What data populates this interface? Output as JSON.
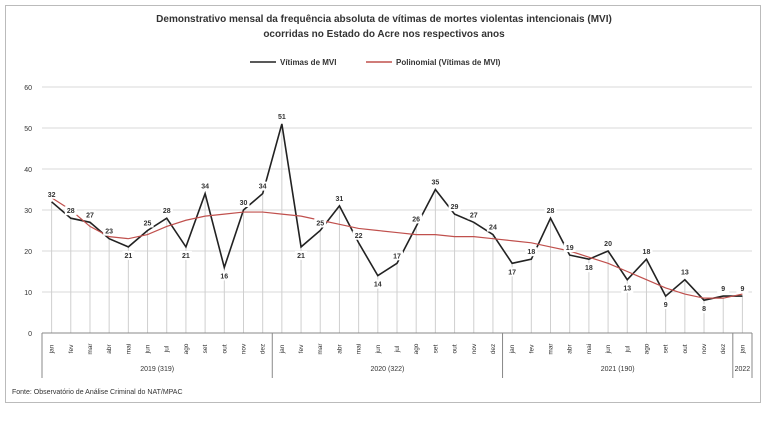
{
  "chart_data": {
    "type": "line",
    "title_line1": "Demonstrativo  mensal da frequência absoluta de vítimas de mortes violentas intencionais (MVI)",
    "title_line2": "ocorridas no Estado do Acre nos respectivos anos",
    "categories": [
      "jan",
      "fev",
      "mar",
      "abr",
      "mai",
      "jun",
      "jul",
      "ago",
      "set",
      "out",
      "nov",
      "dez",
      "jan",
      "fev",
      "mar",
      "abr",
      "mai",
      "jun",
      "jul",
      "ago",
      "set",
      "out",
      "nov",
      "dez",
      "jan",
      "fev",
      "mar",
      "abr",
      "mai",
      "jun",
      "jul",
      "ago",
      "set",
      "out",
      "nov",
      "dez",
      "jan"
    ],
    "groups": [
      {
        "label": "2019 (319)",
        "count": 12
      },
      {
        "label": "2020 (322)",
        "count": 12
      },
      {
        "label": "2021 (190)",
        "count": 12
      },
      {
        "label": "2022",
        "count": 1
      }
    ],
    "series": [
      {
        "name": "Vítimas de MVI",
        "color": "#222222",
        "values": [
          32,
          28,
          27,
          23,
          21,
          25,
          28,
          21,
          34,
          16,
          30,
          34,
          51,
          21,
          25,
          31,
          22,
          14,
          17,
          26,
          35,
          29,
          27,
          24,
          17,
          18,
          28,
          19,
          18,
          20,
          13,
          18,
          9,
          13,
          8,
          9,
          9
        ]
      },
      {
        "name": "Polinomial (Vítimas de MVI)",
        "color": "#c0504d",
        "values": [
          33,
          30,
          26,
          23.5,
          23,
          24,
          26,
          27.5,
          28.5,
          29,
          29.5,
          29.5,
          29,
          28.5,
          27.5,
          26.5,
          25.5,
          25,
          24.5,
          24,
          24,
          23.5,
          23.5,
          23,
          22.5,
          22,
          21,
          20,
          18.5,
          17,
          15,
          13,
          11,
          9.5,
          8.5,
          8.5,
          9.5
        ]
      }
    ],
    "ylim": [
      0,
      60
    ],
    "yticks": [
      0,
      10,
      20,
      30,
      40,
      50,
      60
    ],
    "grid": true,
    "legend": "top",
    "source": "Fonte: Observatório de Análise Criminal do NAT/MPAC"
  }
}
